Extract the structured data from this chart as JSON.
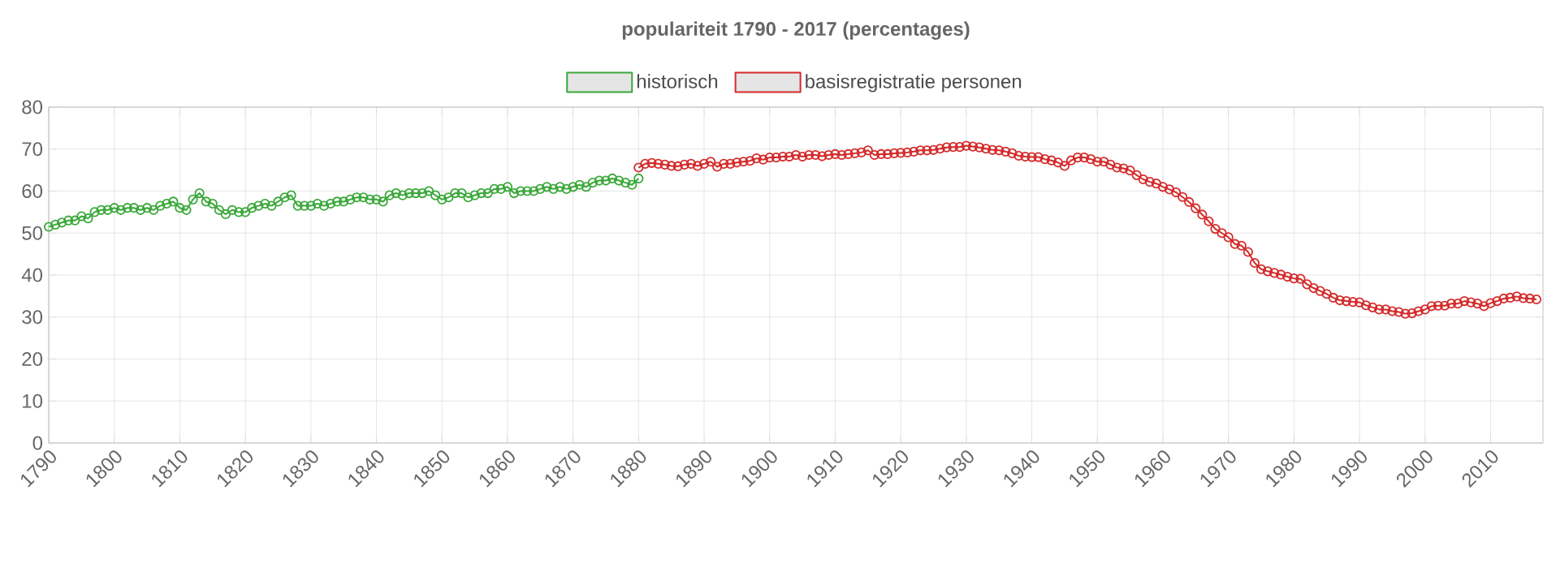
{
  "chart_data": {
    "type": "line",
    "title": "populariteit 1790 - 2017 (percentages)",
    "xlim": [
      1790,
      2018
    ],
    "xticks": [
      1790,
      1800,
      1810,
      1820,
      1830,
      1840,
      1850,
      1860,
      1870,
      1880,
      1890,
      1900,
      1910,
      1920,
      1930,
      1940,
      1950,
      1960,
      1970,
      1980,
      1990,
      2000,
      2010
    ],
    "ylim": [
      0,
      80
    ],
    "yticks": [
      0,
      10,
      20,
      30,
      40,
      50,
      60,
      70,
      80
    ],
    "grid": true,
    "legend": "top",
    "marker": "circle",
    "line_style": "solid",
    "series": [
      {
        "name": "historisch",
        "color": "#3aa83a",
        "x": [
          1790,
          1791,
          1792,
          1793,
          1794,
          1795,
          1796,
          1797,
          1798,
          1799,
          1800,
          1801,
          1802,
          1803,
          1804,
          1805,
          1806,
          1807,
          1808,
          1809,
          1810,
          1811,
          1812,
          1813,
          1814,
          1815,
          1816,
          1817,
          1818,
          1819,
          1820,
          1821,
          1822,
          1823,
          1824,
          1825,
          1826,
          1827,
          1828,
          1829,
          1830,
          1831,
          1832,
          1833,
          1834,
          1835,
          1836,
          1837,
          1838,
          1839,
          1840,
          1841,
          1842,
          1843,
          1844,
          1845,
          1846,
          1847,
          1848,
          1849,
          1850,
          1851,
          1852,
          1853,
          1854,
          1855,
          1856,
          1857,
          1858,
          1859,
          1860,
          1861,
          1862,
          1863,
          1864,
          1865,
          1866,
          1867,
          1868,
          1869,
          1870,
          1871,
          1872,
          1873,
          1874,
          1875,
          1876,
          1877,
          1878,
          1879,
          1880
        ],
        "values": [
          51.5,
          52,
          52.5,
          53,
          53,
          54,
          53.5,
          55,
          55.5,
          55.5,
          56,
          55.5,
          56,
          56,
          55.5,
          56,
          55.5,
          56.5,
          57,
          57.5,
          56,
          55.5,
          58,
          59.5,
          57.5,
          57,
          55.5,
          54.5,
          55.5,
          55,
          55,
          56,
          56.5,
          57,
          56.5,
          57.5,
          58.5,
          59,
          56.5,
          56.5,
          56.5,
          57,
          56.5,
          57,
          57.5,
          57.5,
          58,
          58.5,
          58.5,
          58,
          58,
          57.5,
          59,
          59.5,
          59,
          59.5,
          59.5,
          59.5,
          60,
          59,
          58,
          58.5,
          59.5,
          59.5,
          58.5,
          59,
          59.5,
          59.5,
          60.5,
          60.5,
          61,
          59.5,
          60,
          60,
          60,
          60.5,
          61,
          60.5,
          61,
          60.5,
          61,
          61.5,
          61,
          62,
          62.5,
          62.5,
          63,
          62.5,
          62,
          61.5,
          63
        ]
      },
      {
        "name": "basisregistratie personen",
        "color": "#d42a2a",
        "x": [
          1880,
          1881,
          1882,
          1883,
          1884,
          1885,
          1886,
          1887,
          1888,
          1889,
          1890,
          1891,
          1892,
          1893,
          1894,
          1895,
          1896,
          1897,
          1898,
          1899,
          1900,
          1901,
          1902,
          1903,
          1904,
          1905,
          1906,
          1907,
          1908,
          1909,
          1910,
          1911,
          1912,
          1913,
          1914,
          1915,
          1916,
          1917,
          1918,
          1919,
          1920,
          1921,
          1922,
          1923,
          1924,
          1925,
          1926,
          1927,
          1928,
          1929,
          1930,
          1931,
          1932,
          1933,
          1934,
          1935,
          1936,
          1937,
          1938,
          1939,
          1940,
          1941,
          1942,
          1943,
          1944,
          1945,
          1946,
          1947,
          1948,
          1949,
          1950,
          1951,
          1952,
          1953,
          1954,
          1955,
          1956,
          1957,
          1958,
          1959,
          1960,
          1961,
          1962,
          1963,
          1964,
          1965,
          1966,
          1967,
          1968,
          1969,
          1970,
          1971,
          1972,
          1973,
          1974,
          1975,
          1976,
          1977,
          1978,
          1979,
          1980,
          1981,
          1982,
          1983,
          1984,
          1985,
          1986,
          1987,
          1988,
          1989,
          1990,
          1991,
          1992,
          1993,
          1994,
          1995,
          1996,
          1997,
          1998,
          1999,
          2000,
          2001,
          2002,
          2003,
          2004,
          2005,
          2006,
          2007,
          2008,
          2009,
          2010,
          2011,
          2012,
          2013,
          2014,
          2015,
          2016,
          2017
        ],
        "values": [
          65.6,
          66.5,
          66.7,
          66.5,
          66.3,
          66,
          65.9,
          66.3,
          66.5,
          66,
          66.5,
          67,
          65.8,
          66.5,
          66.5,
          66.8,
          67,
          67.2,
          67.8,
          67.5,
          68,
          68,
          68.2,
          68.2,
          68.6,
          68.2,
          68.6,
          68.6,
          68.3,
          68.6,
          68.8,
          68.6,
          68.8,
          69,
          69.2,
          69.7,
          68.6,
          68.8,
          68.8,
          69,
          69.1,
          69.2,
          69.4,
          69.7,
          69.7,
          69.8,
          70.1,
          70.4,
          70.5,
          70.5,
          70.8,
          70.6,
          70.4,
          70.1,
          69.8,
          69.7,
          69.4,
          69,
          68.4,
          68.2,
          68.1,
          68.1,
          67.6,
          67.3,
          66.8,
          66,
          67.3,
          68,
          68,
          67.6,
          67,
          67,
          66.3,
          65.6,
          65.4,
          64.9,
          63.8,
          62.8,
          62.2,
          61.8,
          61,
          60.4,
          59.7,
          58.6,
          57.4,
          55.9,
          54.4,
          52.8,
          51,
          50,
          49,
          47.4,
          47,
          45.5,
          42.9,
          41.4,
          40.9,
          40.5,
          40.1,
          39.6,
          39.2,
          39.1,
          37.8,
          36.9,
          36.2,
          35.5,
          34.6,
          34,
          33.8,
          33.6,
          33.5,
          32.8,
          32.3,
          31.8,
          31.8,
          31.4,
          31.2,
          30.8,
          30.9,
          31.4,
          31.8,
          32.6,
          32.7,
          32.7,
          33.2,
          33.2,
          33.8,
          33.5,
          33.2,
          32.6,
          33.3,
          33.8,
          34.4,
          34.6,
          34.9,
          34.5,
          34.4,
          34.2
        ]
      }
    ]
  }
}
